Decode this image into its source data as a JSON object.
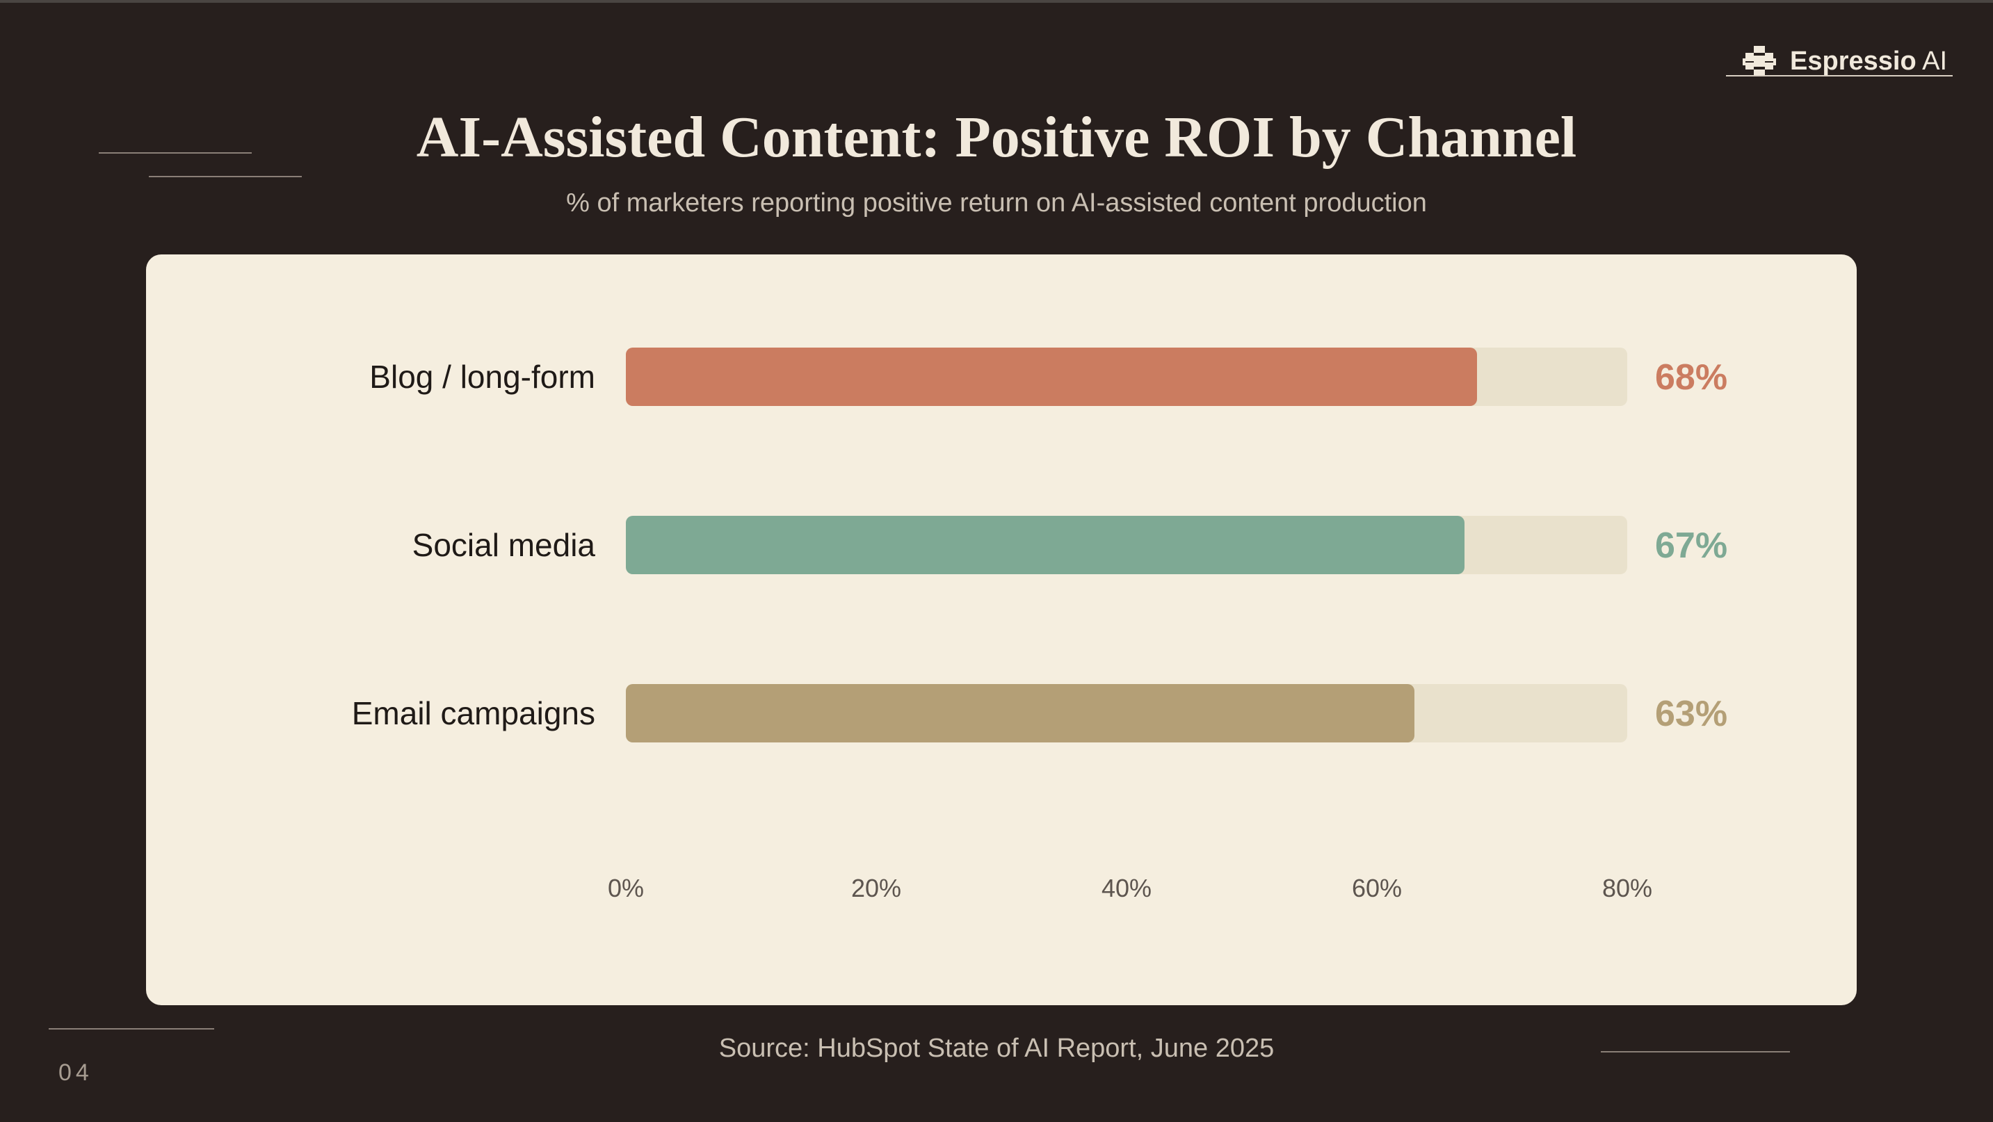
{
  "brand": {
    "name_bold": "Espressio",
    "name_light": "AI",
    "icon": "espressio-logo-icon"
  },
  "header": {
    "title": "AI-Assisted Content: Positive ROI by Channel",
    "subtitle": "% of marketers reporting positive return on AI-assisted content production"
  },
  "chart_data": {
    "type": "bar",
    "orientation": "horizontal",
    "categories": [
      "Blog / long-form",
      "Social media",
      "Email campaigns"
    ],
    "values": [
      68,
      67,
      63
    ],
    "value_labels": [
      "68%",
      "67%",
      "63%"
    ],
    "xlim": [
      0,
      80
    ],
    "xticks": [
      0,
      20,
      40,
      60,
      80
    ],
    "xtick_labels": [
      "0%",
      "20%",
      "40%",
      "60%",
      "80%"
    ],
    "grid": false,
    "colors": [
      "#cb7c60",
      "#7ea994",
      "#b49f76"
    ],
    "track_color": "#e9e1cc"
  },
  "footer": {
    "source": "Source: HubSpot State of AI Report, June 2025",
    "page_number": "04"
  }
}
